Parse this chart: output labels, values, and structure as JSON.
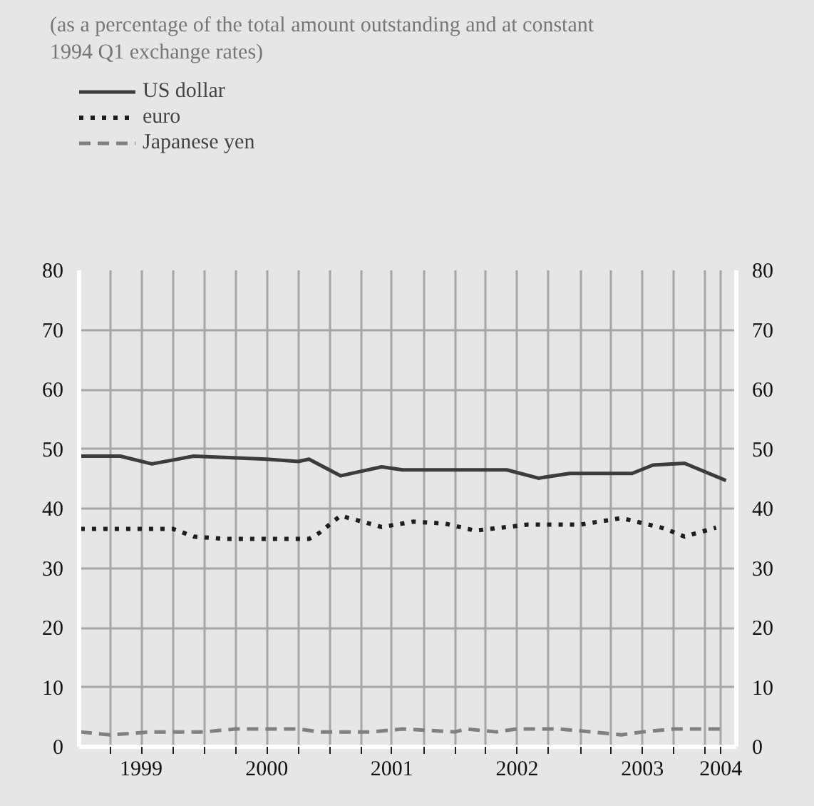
{
  "chart_data": {
    "type": "line",
    "subtitle": "(as a percentage of the total amount outstanding and at constant 1994 Q1 exchange rates)",
    "series": [
      {
        "name": "US dollar",
        "color": "#3c3c3c",
        "line_style": "solid",
        "x": [
          "1999-01-05",
          "1999-05",
          "1999-08",
          "1999-12",
          "2000-07",
          "2000-10",
          "2000-11",
          "2001-02",
          "2001-06",
          "2001-08",
          "2002-06",
          "2002-09",
          "2002-12",
          "2003-06",
          "2003-08",
          "2003-11",
          "2004-03"
        ],
        "values": [
          48.8,
          48.8,
          47.5,
          48.8,
          48.3,
          47.9,
          48.3,
          45.5,
          47.0,
          46.5,
          46.5,
          45.1,
          45.9,
          45.9,
          47.3,
          47.6,
          44.7
        ]
      },
      {
        "name": "euro",
        "color": "#1e1e1e",
        "line_style": "dotted",
        "x": [
          "1999-01-05",
          "1999-10",
          "1999-12",
          "2000-03",
          "2000-11",
          "2000-12",
          "2001-02",
          "2001-05",
          "2001-06",
          "2001-09",
          "2001-12",
          "2002-03",
          "2002-08",
          "2003-01",
          "2003-05",
          "2003-09",
          "2003-11",
          "2004-02"
        ],
        "values": [
          36.6,
          36.6,
          35.3,
          34.9,
          34.9,
          35.9,
          38.8,
          37.4,
          36.9,
          37.8,
          37.5,
          36.3,
          37.3,
          37.3,
          38.4,
          36.7,
          35.3,
          36.8
        ]
      },
      {
        "name": "Japanese yen",
        "color": "#808080",
        "line_style": "dashed",
        "x": [
          "1999-01-05",
          "1999-04",
          "1999-08",
          "2000-01",
          "2000-04",
          "2000-10",
          "2000-12",
          "2001-05",
          "2001-08",
          "2002-01",
          "2002-02",
          "2002-05",
          "2002-07",
          "2002-11",
          "2003-02",
          "2003-05",
          "2003-07",
          "2003-10",
          "2004-03"
        ],
        "values": [
          2.5,
          2.0,
          2.5,
          2.5,
          3.0,
          3.0,
          2.5,
          2.5,
          3.0,
          2.5,
          3.0,
          2.5,
          3.0,
          3.0,
          2.5,
          2.0,
          2.5,
          3.0,
          3.0
        ]
      }
    ],
    "xlim": [
      "1999-01-01",
      "2004-03-31"
    ],
    "xticks": [
      {
        "value": "1999-04-01",
        "label": null
      },
      {
        "value": "1999-07-01",
        "label": "1999"
      },
      {
        "value": "1999-10-01",
        "label": null
      },
      {
        "value": "2000-01-01",
        "label": null
      },
      {
        "value": "2000-04-01",
        "label": null
      },
      {
        "value": "2000-07-01",
        "label": "2000"
      },
      {
        "value": "2000-10-01",
        "label": null
      },
      {
        "value": "2001-01-01",
        "label": null
      },
      {
        "value": "2001-04-01",
        "label": null
      },
      {
        "value": "2001-07-01",
        "label": "2001"
      },
      {
        "value": "2001-10-01",
        "label": null
      },
      {
        "value": "2002-01-01",
        "label": null
      },
      {
        "value": "2002-04-01",
        "label": null
      },
      {
        "value": "2002-07-01",
        "label": "2002"
      },
      {
        "value": "2002-10-01",
        "label": null
      },
      {
        "value": "2003-01-01",
        "label": null
      },
      {
        "value": "2003-04-01",
        "label": null
      },
      {
        "value": "2003-07-01",
        "label": "2003"
      },
      {
        "value": "2003-10-01",
        "label": null
      },
      {
        "value": "2004-01-01",
        "label": null
      },
      {
        "value": "2004-02-15",
        "label": "2004"
      }
    ],
    "ylim": [
      0,
      80
    ],
    "yticks": [
      0,
      10,
      20,
      30,
      40,
      50,
      60,
      70,
      80
    ],
    "y2lim": [
      0,
      80
    ],
    "y2ticks": [
      0,
      10,
      20,
      30,
      40,
      50,
      60,
      70,
      80
    ],
    "grid": true,
    "legend": "top left",
    "marker": "none"
  }
}
